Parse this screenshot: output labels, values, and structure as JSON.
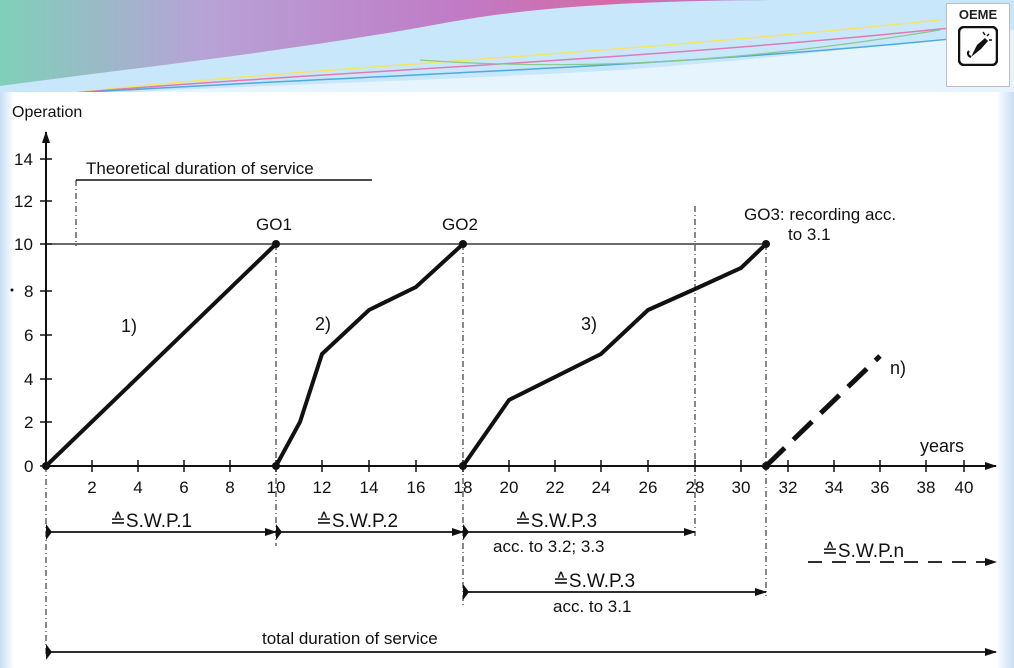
{
  "header": {
    "logo_text": "OEME",
    "logo_icon": "pen-nib-icon"
  },
  "diagram": {
    "y_axis_title": "Operation",
    "x_axis_title": "years",
    "y_ticks": [
      "0",
      "2",
      "4",
      "6",
      "8",
      "10",
      "12",
      "14"
    ],
    "x_ticks_1": [
      "2",
      "4",
      "6",
      "8",
      "10"
    ],
    "x_ticks_2": [
      "10",
      "12",
      "14",
      "16",
      "18"
    ],
    "x_ticks_3": [
      "18",
      "20",
      "22",
      "24",
      "26",
      "28",
      "30"
    ],
    "x_ticks_4": [
      "32",
      "34",
      "36",
      "38",
      "40"
    ],
    "theoretical_label": "Theoretical duration of service",
    "go_labels": {
      "go1": "GO1",
      "go2": "GO2",
      "go3_line1": "GO3: recording acc.",
      "go3_line2": "to 3.1"
    },
    "curve_labels": {
      "c1": "1)",
      "c2": "2)",
      "c3": "3)",
      "cn": "n)"
    },
    "swp": {
      "p1": "≙S.W.P.1",
      "p2": "≙S.W.P.2",
      "p3a": "≙S.W.P.3",
      "p3a_sub": "acc. to 3.2; 3.3",
      "p3b": "≙S.W.P.3",
      "p3b_sub": "acc. to 3.1",
      "pn": "≙S.W.P.n"
    },
    "total_label": "total duration of service"
  }
}
